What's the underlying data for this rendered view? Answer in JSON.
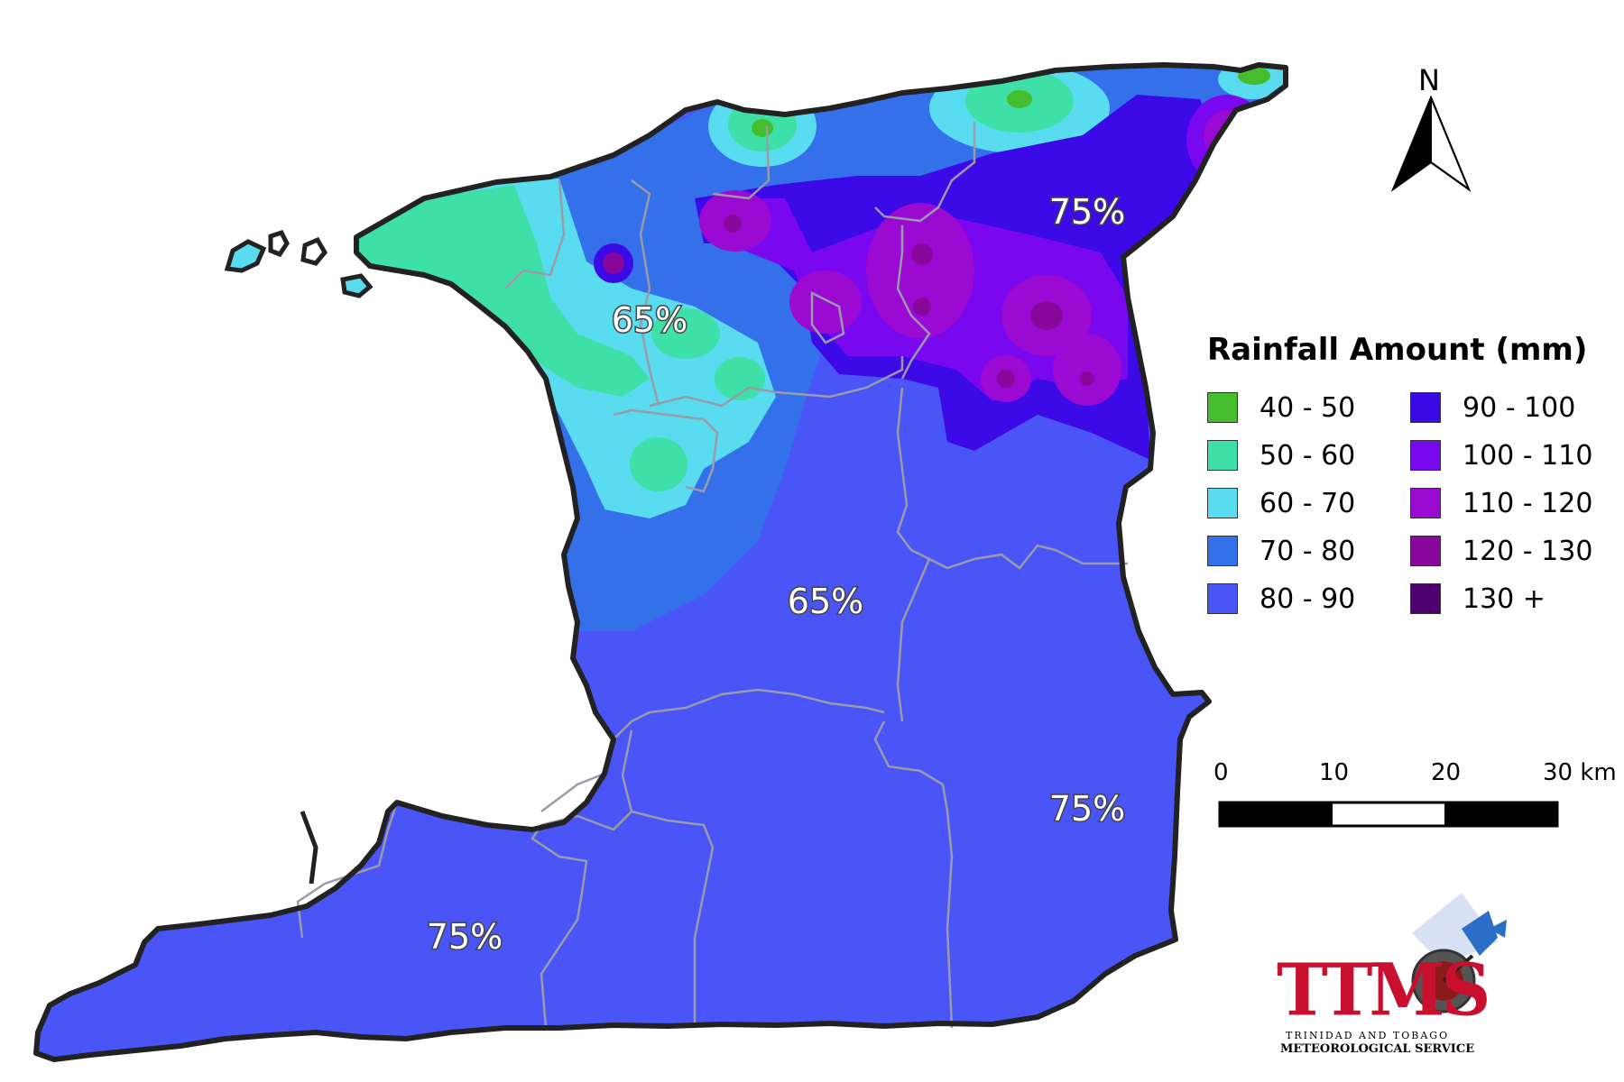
{
  "legend": {
    "title": "Rainfall Amount (mm)",
    "items": [
      {
        "label": "40 - 50",
        "color": "#44be2c"
      },
      {
        "label": "50 - 60",
        "color": "#3fe0a8"
      },
      {
        "label": "60 - 70",
        "color": "#5adcf0"
      },
      {
        "label": "70 - 80",
        "color": "#3370ea"
      },
      {
        "label": "80 - 90",
        "color": "#4a55f7"
      },
      {
        "label": "90 - 100",
        "color": "#3c0ae6"
      },
      {
        "label": "100 - 110",
        "color": "#7a08ee"
      },
      {
        "label": "110 - 120",
        "color": "#9a0ad2"
      },
      {
        "label": "120 - 130",
        "color": "#88089c"
      },
      {
        "label": "130 +",
        "color": "#50006e"
      }
    ]
  },
  "percent_labels": [
    "65%",
    "75%",
    "65%",
    "75%",
    "75%"
  ],
  "north_arrow": {
    "label": "N",
    "icon": "north-arrow-icon"
  },
  "scale_bar": {
    "labels": [
      "0",
      "10",
      "20",
      "30 km"
    ]
  },
  "logo": {
    "letters": "TTMS",
    "line1": "TRINIDAD AND TOBAGO",
    "line2": "METEOROLOGICAL SERVICE"
  }
}
